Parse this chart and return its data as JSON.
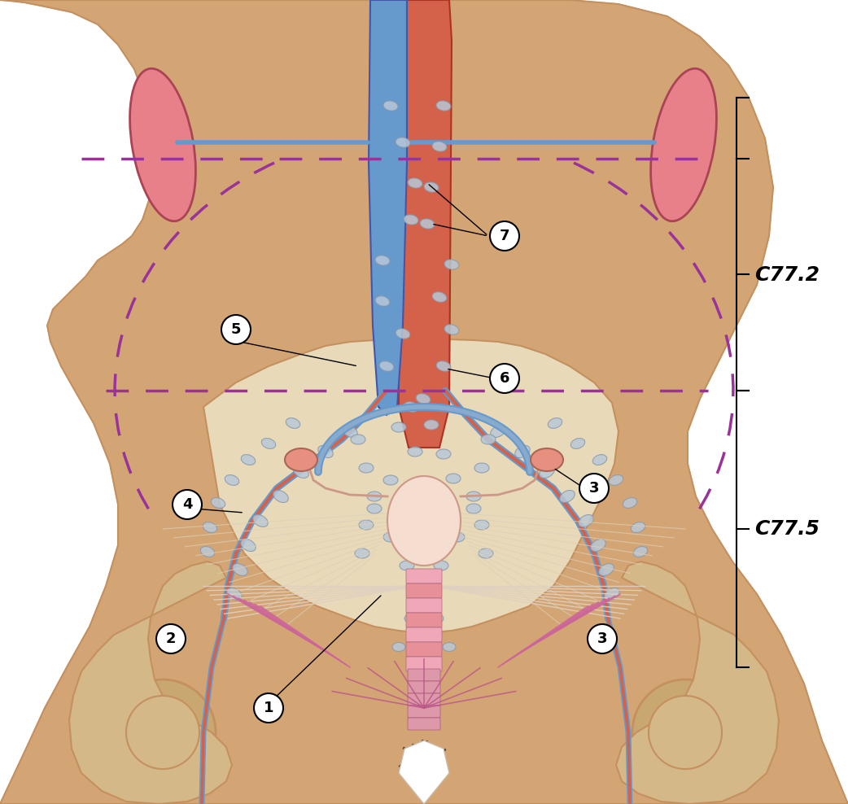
{
  "title": "",
  "bg_color": "#FFFFFF",
  "skin_color": "#D4A574",
  "skin_dark": "#C49060",
  "kidney_color": "#E8808A",
  "aorta_color": "#D4624A",
  "vein_color": "#6699CC",
  "node_color": "#B8C8D8",
  "node_edge": "#8899AA",
  "pelvic_fill": "#E8D4B0",
  "uterus_color": "#F0C0C0",
  "cervix_color": "#F0A0B0",
  "ovary_color": "#E89080",
  "ligament_color": "#E8D0C0",
  "dashed_color": "#993399",
  "arrow_color": "#000000",
  "bracket_color": "#000000",
  "label1": "1",
  "label2": "2",
  "label3": "3",
  "label4": "4",
  "label5": "5",
  "label6": "6",
  "label7": "7",
  "c772": "C77.2",
  "c775": "C77.5",
  "pink_lines": "#CC6699",
  "presacral_color": "#CC88AA"
}
